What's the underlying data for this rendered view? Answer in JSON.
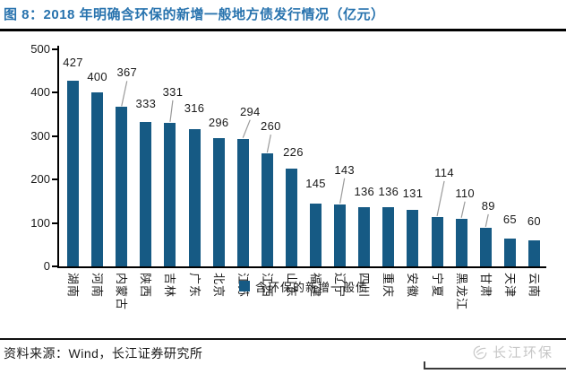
{
  "figure": {
    "title": "图 8：2018 年明确含环保的新增一般地方债发行情况（亿元）",
    "source": "资料来源：Wind，长江证券研究所",
    "watermark": "长江环保"
  },
  "colors": {
    "title_blue": "#2873ae",
    "bar_blue": "#165a84",
    "axis_black": "#000000",
    "leader_gray": "#9a9a9a",
    "watermark_gray": "#c6c6c6"
  },
  "chart_data": {
    "type": "bar",
    "figure_label": "图 8",
    "title": "2018 年明确含环保的新增一般地方债发行情况（亿元）",
    "unit": "亿元",
    "categories": [
      "湖南",
      "河南",
      "内蒙古",
      "陕西",
      "吉林",
      "广东",
      "北京",
      "江苏",
      "江西",
      "山东",
      "福建",
      "辽宁",
      "四川",
      "重庆",
      "安徽",
      "宁夏",
      "黑龙江",
      "甘肃",
      "天津",
      "云南"
    ],
    "values": [
      427,
      400,
      367,
      333,
      331,
      316,
      296,
      294,
      260,
      226,
      145,
      143,
      136,
      136,
      131,
      114,
      110,
      89,
      65,
      60
    ],
    "series_name": "含环保的新增一般债",
    "legend": [
      "含环保的新增一般债"
    ],
    "legend_position": "bottom-center",
    "xlabel": "",
    "ylabel": "",
    "ylim": [
      0,
      500
    ],
    "yticks": [
      0,
      100,
      200,
      300,
      400,
      500
    ],
    "grid": false,
    "data_labels": true,
    "bar_color": "#165a84",
    "label_layout": {
      "raise": [
        3,
        0,
        21,
        3,
        17,
        6,
        0,
        13,
        13,
        1,
        5,
        21,
        0,
        0,
        1,
        32,
        11,
        7,
        4,
        4
      ],
      "leader": [
        0,
        0,
        1,
        0,
        1,
        0,
        0,
        1,
        1,
        0,
        0,
        1,
        0,
        0,
        0,
        1,
        1,
        1,
        0,
        0
      ],
      "dx": [
        0,
        0,
        6,
        0,
        3,
        0,
        0,
        8,
        4,
        2,
        0,
        5,
        0,
        0,
        0,
        8,
        4,
        3,
        0,
        0
      ],
      "leader_color": "#9a9a9a"
    }
  }
}
